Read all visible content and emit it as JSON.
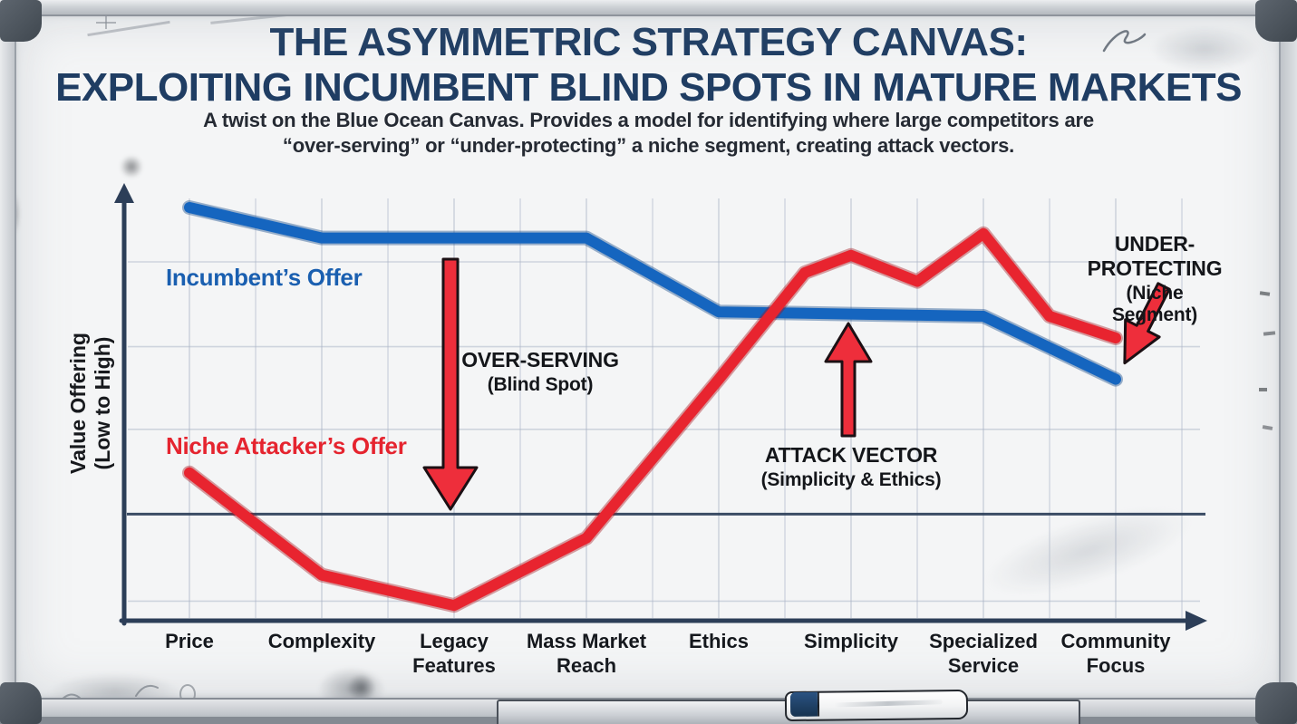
{
  "title": {
    "line1": "THE ASYMMETRIC STRATEGY CANVAS:",
    "line2": "EXPLOITING INCUMBENT BLIND SPOTS IN MATURE MARKETS"
  },
  "subtitle": {
    "line1": "A twist on the Blue Ocean Canvas. Provides a model for identifying where large competitors are",
    "line2": "“over-serving” or “under-protecting” a niche segment, creating attack vectors."
  },
  "legend": {
    "incumbent": "Incumbent’s Offer",
    "attacker": "Niche Attacker’s Offer"
  },
  "axis": {
    "y_label_line1": "Value Offering",
    "y_label_line2": "(Low to High)"
  },
  "annotations": {
    "over_serving": {
      "title": "OVER-SERVING",
      "subtitle": "(Blind Spot)"
    },
    "attack_vector": {
      "title": "ATTACK VECTOR",
      "subtitle": "(Simplicity & Ethics)"
    },
    "under_protecting": {
      "title": "UNDER-PROTECTING",
      "subtitle": "(Niche Segment)"
    }
  },
  "colors": {
    "title_navy": "#1f3d63",
    "incumbent_blue": "#1565bf",
    "incumbent_edge": "#0d4386",
    "attacker_red": "#e8242f",
    "attacker_edge": "#a5121c",
    "arrow_fill": "#ee2e3b",
    "arrow_outline": "#1c1014",
    "axis_navy": "#2c3e58",
    "grid_gray": "#aab4c6",
    "text_dark": "#15181d",
    "board_white": "#f4f5f6"
  },
  "chart_data": {
    "type": "line",
    "title": "",
    "xlabel": "",
    "ylabel": "Value Offering (Low to High)",
    "ylim": [
      0,
      10
    ],
    "grid": "on",
    "legend_position": "inside-left",
    "categories": [
      "Price",
      "Complexity",
      "Legacy\nFeatures",
      "Mass Market\nReach",
      "Ethics",
      "Simplicity",
      "Specialized\nService",
      "Community\nFocus"
    ],
    "baseline_value": 2.45,
    "grid_y_values": [
      8.25,
      6.3,
      4.4,
      0.45
    ],
    "series": [
      {
        "name": "Incumbent’s Offer",
        "color": "#1565bf",
        "edge_color": "#0d4386",
        "points": [
          [
            0,
            9.5
          ],
          [
            1,
            8.8
          ],
          [
            2,
            8.8
          ],
          [
            3,
            8.8
          ],
          [
            4,
            7.1
          ],
          [
            5,
            7.05
          ],
          [
            6,
            7.0
          ],
          [
            7,
            5.55
          ]
        ]
      },
      {
        "name": "Niche Attacker’s Offer",
        "color": "#e8242f",
        "edge_color": "#a5121c",
        "points": [
          [
            0,
            3.4
          ],
          [
            1,
            1.05
          ],
          [
            2,
            0.35
          ],
          [
            3,
            1.9
          ],
          [
            4,
            5.55
          ],
          [
            4.65,
            8.0
          ],
          [
            5,
            8.4
          ],
          [
            5.5,
            7.8
          ],
          [
            6,
            8.9
          ],
          [
            6.5,
            7.0
          ],
          [
            7,
            6.5
          ]
        ]
      }
    ]
  }
}
